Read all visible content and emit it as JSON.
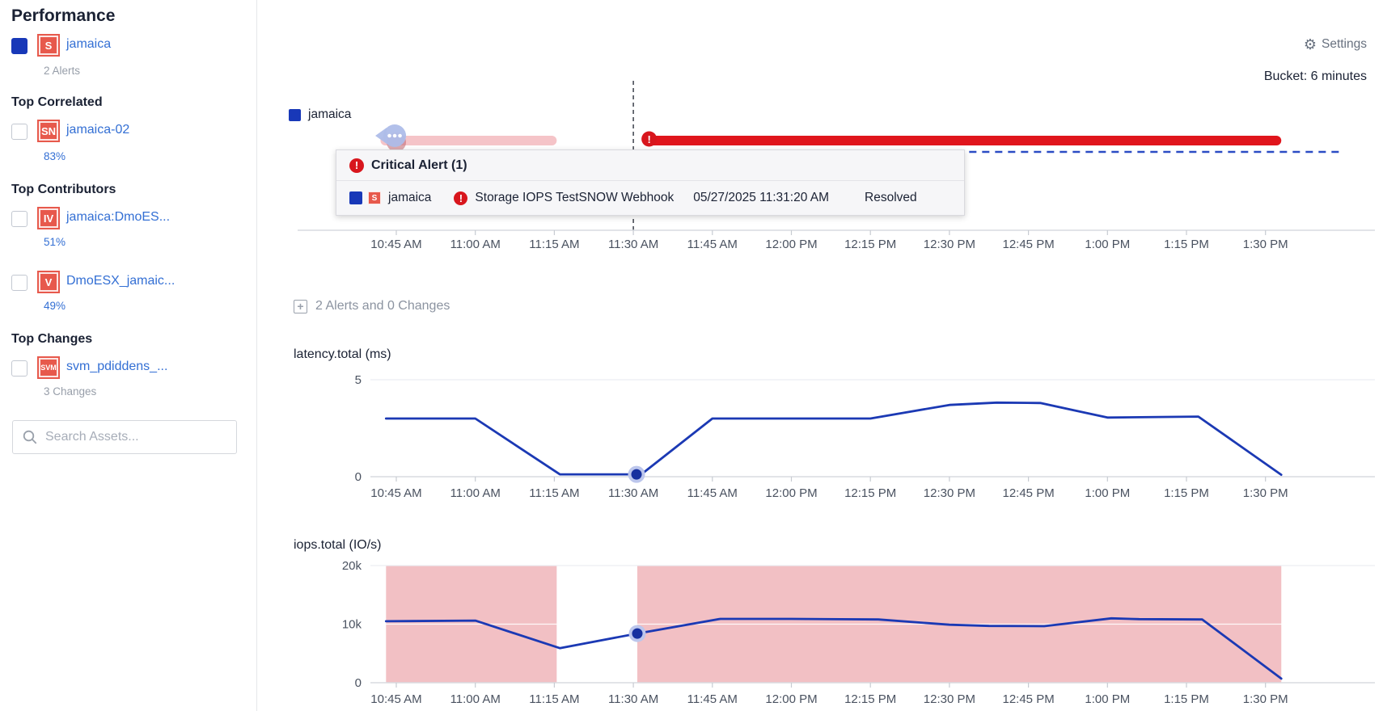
{
  "page_title": "Performance",
  "header": {
    "settings": "Settings",
    "bucket": "Bucket: 6 minutes"
  },
  "sidebar": {
    "search_placeholder": "Search Assets...",
    "primary": {
      "icon": "S",
      "name": "jamaica",
      "sub": "2 Alerts",
      "checked": true
    },
    "sections": [
      {
        "heading": "Top Correlated",
        "items": [
          {
            "icon": "SN",
            "name": "jamaica-02",
            "sub": "83%"
          }
        ]
      },
      {
        "heading": "Top Contributors",
        "items": [
          {
            "icon": "IV",
            "name": "jamaica:DmoES...",
            "sub": "51%"
          },
          {
            "icon": "V",
            "name": "DmoESX_jamaic...",
            "sub": "49%"
          }
        ]
      },
      {
        "heading": "Top Changes",
        "items": [
          {
            "icon": "SVM",
            "name": "svm_pdiddens_...",
            "sub": "3 Changes"
          }
        ]
      }
    ]
  },
  "timeline": {
    "legend": "jamaica",
    "tooltip": {
      "title": "Critical Alert (1)",
      "asset_icon": "S",
      "asset": "jamaica",
      "alert_name": "Storage IOPS TestSNOW Webhook",
      "time": "05/27/2025 11:31:20 AM",
      "status": "Resolved"
    }
  },
  "expand_label": "2 Alerts and 0 Changes",
  "colors": {
    "accent_blue": "#1838b8",
    "link_blue": "#336fd4",
    "line_blue": "#1b39b4",
    "alert_red": "#e0151c",
    "icon_red": "#e7594c",
    "pink_region": "#f2c0c4",
    "marker_halo": "#bcc6ec"
  },
  "chart_data": [
    {
      "type": "timeline",
      "name": "alerts-timeline",
      "series_label": "jamaica",
      "x_ticks": [
        "10:45 AM",
        "11:00 AM",
        "11:15 AM",
        "11:30 AM",
        "11:45 AM",
        "12:00 PM",
        "12:15 PM",
        "12:30 PM",
        "12:45 PM",
        "1:00 PM",
        "1:15 PM",
        "1:30 PM"
      ],
      "cursor_t": 3.0,
      "bars": [
        {
          "label": "resolved alert group",
          "start_t": -0.2,
          "end_t": 2.03,
          "color": "#f5c4c8",
          "marker": {
            "kind": "group-bubble",
            "t": -0.02
          }
        },
        {
          "label": "critical alert",
          "start_t": 3.17,
          "end_t": 11.2,
          "color": "#e0151c",
          "marker": {
            "kind": "critical",
            "t": 3.2
          }
        }
      ],
      "baseline_dashed": {
        "start_t": 7.25,
        "end_t": 11.98,
        "color": "#2b4cc4"
      }
    },
    {
      "type": "line",
      "title": "latency.total (ms)",
      "ylabel": "latency.total (ms)",
      "ylim": [
        0,
        5
      ],
      "yticks": [
        {
          "v": 0,
          "label": "0"
        },
        {
          "v": 5,
          "label": "5"
        }
      ],
      "series": [
        {
          "name": "jamaica",
          "color": "#1b39b4",
          "points": [
            [
              -0.13,
              3.0
            ],
            [
              1,
              3.0
            ],
            [
              2.07,
              0.12
            ],
            [
              3.1,
              0.12
            ],
            [
              4,
              3.0
            ],
            [
              5,
              3.0
            ],
            [
              6,
              3.0
            ],
            [
              7,
              3.7
            ],
            [
              7.6,
              3.82
            ],
            [
              8.15,
              3.8
            ],
            [
              9,
              3.05
            ],
            [
              10.15,
              3.1
            ],
            [
              11.2,
              0.1
            ]
          ]
        }
      ],
      "marker": {
        "t": 3.04,
        "v": 0.12
      }
    },
    {
      "type": "line",
      "title": "iops.total (IO/s)",
      "ylabel": "iops.total (IO/s)",
      "ylim": [
        0,
        20000
      ],
      "yticks": [
        {
          "v": 0,
          "label": "0"
        },
        {
          "v": 10000,
          "label": "10k"
        },
        {
          "v": 20000,
          "label": "20k"
        }
      ],
      "region_color": "#f2c0c4",
      "regions": [
        {
          "start_t": -0.13,
          "end_t": 2.03
        },
        {
          "start_t": 3.05,
          "end_t": 11.2
        }
      ],
      "series": [
        {
          "name": "jamaica",
          "color": "#1b39b4",
          "points": [
            [
              -0.13,
              10500
            ],
            [
              1,
              10600
            ],
            [
              2.07,
              5900
            ],
            [
              3.05,
              8400
            ],
            [
              4.1,
              10900
            ],
            [
              5,
              10900
            ],
            [
              6.1,
              10800
            ],
            [
              7,
              9900
            ],
            [
              7.5,
              9700
            ],
            [
              8.2,
              9650
            ],
            [
              9.05,
              11000
            ],
            [
              9.4,
              10850
            ],
            [
              10.2,
              10800
            ],
            [
              11.2,
              700
            ]
          ]
        }
      ],
      "marker": {
        "t": 3.05,
        "v": 8400
      }
    }
  ]
}
